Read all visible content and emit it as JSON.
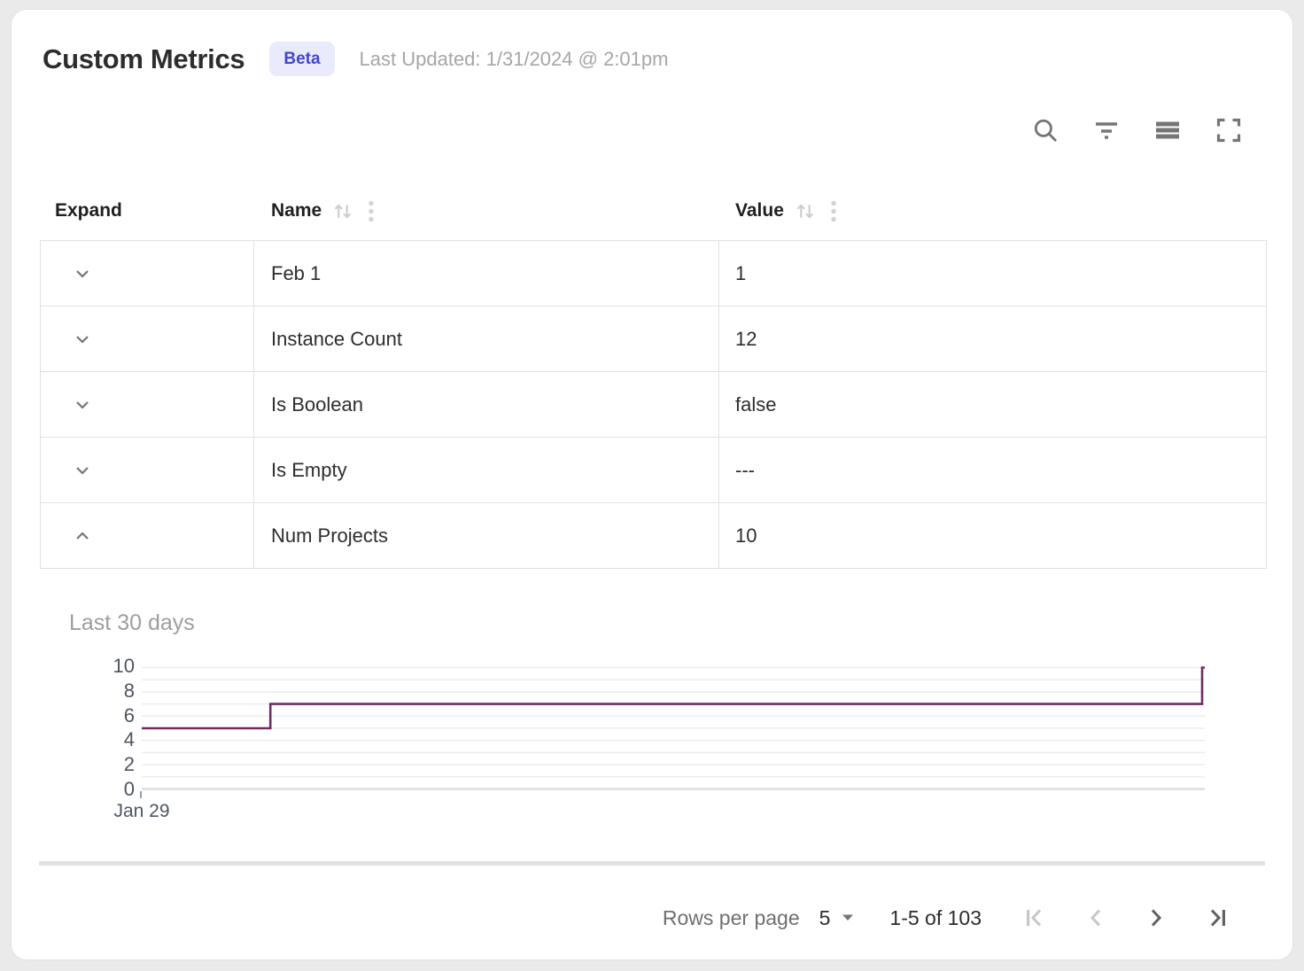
{
  "header": {
    "title": "Custom Metrics",
    "badge": "Beta",
    "last_updated": "Last Updated: 1/31/2024 @ 2:01pm"
  },
  "toolbar": {
    "icons": [
      "search",
      "filter",
      "density",
      "fullscreen"
    ],
    "icon_color": "#757575"
  },
  "table": {
    "columns": [
      {
        "label": "Expand",
        "sortable": false
      },
      {
        "label": "Name",
        "sortable": true
      },
      {
        "label": "Value",
        "sortable": true
      }
    ],
    "rows": [
      {
        "name": "Feb 1",
        "value": "1",
        "expanded": false
      },
      {
        "name": "Instance Count",
        "value": "12",
        "expanded": false
      },
      {
        "name": "Is Boolean",
        "value": "false",
        "expanded": false
      },
      {
        "name": "Is Empty",
        "value": "---",
        "expanded": false
      },
      {
        "name": "Num Projects",
        "value": "10",
        "expanded": true
      }
    ]
  },
  "chart_data": {
    "type": "line",
    "subtype": "step",
    "title": "Last 30 days",
    "series": [
      {
        "name": "Num Projects",
        "points": [
          [
            0,
            5
          ],
          [
            12.1,
            5
          ],
          [
            12.1,
            7
          ],
          [
            99.75,
            7
          ],
          [
            99.75,
            10
          ],
          [
            100,
            10
          ]
        ],
        "points_note": "x is percent of 30-day window, y is metric value"
      }
    ],
    "ylim": [
      0,
      10
    ],
    "yticks_labeled": [
      0,
      2,
      4,
      6,
      8,
      10
    ],
    "minor_grid_step": 1,
    "x_axis": {
      "first_tick_label": "Jan 29"
    },
    "line_color": "#6e2c62",
    "grid_color": "#ededed",
    "baseline_color": "#e3e3e3",
    "legend": "none",
    "grid": "horizontal-only"
  },
  "footer": {
    "rows_per_page_label": "Rows per page",
    "rows_per_page_value": "5",
    "range_label": "1-5 of 103",
    "pagination": {
      "first_enabled": false,
      "prev_enabled": false,
      "next_enabled": true,
      "last_enabled": true
    }
  },
  "colors": {
    "card_background": "#ffffff",
    "page_background": "#eaeaea",
    "border": "#e1e1e1",
    "badge_background": "#e9ebfd",
    "badge_text": "#4347c6",
    "muted_text": "#a6a6a6",
    "axis_text": "#4d5561",
    "header_text": "#1f1f1f",
    "cell_text": "#2d2d2d"
  }
}
